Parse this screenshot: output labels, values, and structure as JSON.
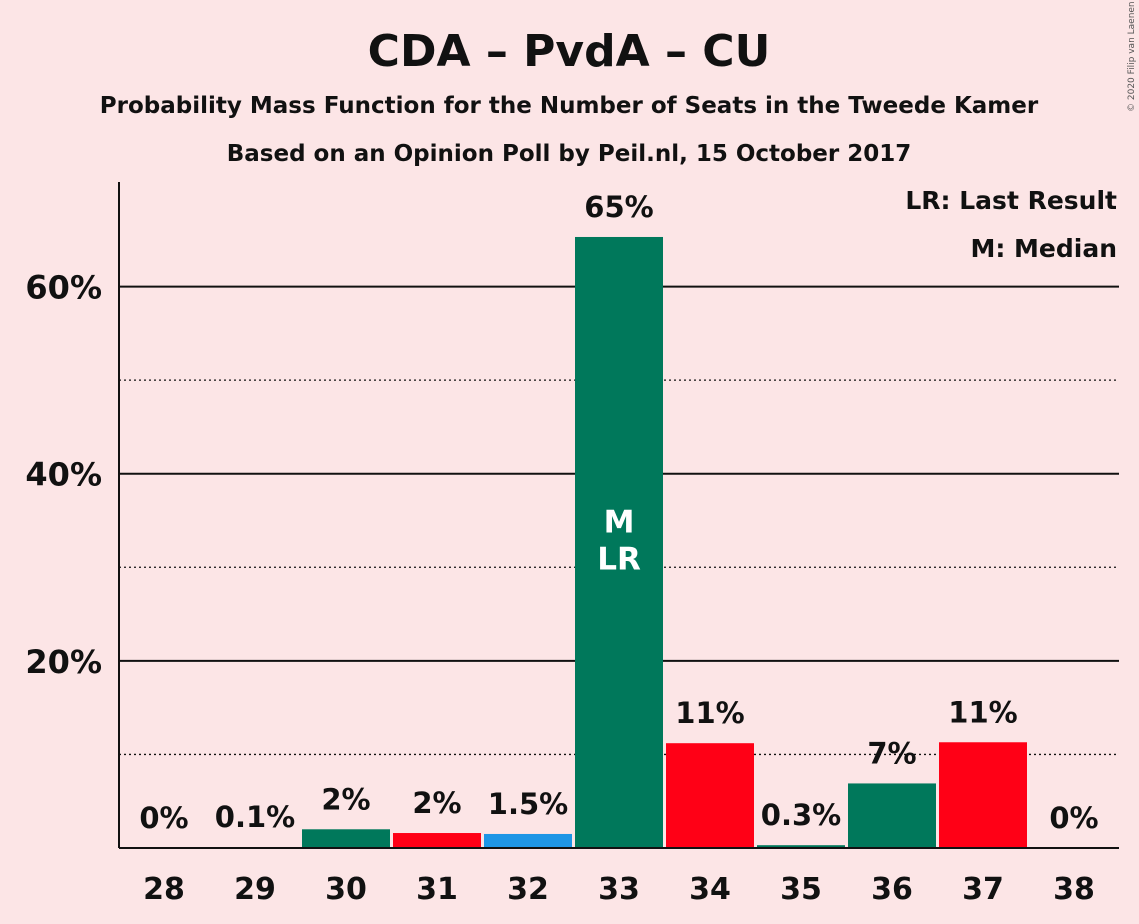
{
  "chart_data": {
    "type": "bar",
    "title": "CDA – PvdA – CU",
    "subtitle": "Probability Mass Function for the Number of Seats in the Tweede Kamer",
    "subtitle2": "Based on an Opinion Poll by Peil.nl, 15 October 2017",
    "categories": [
      "28",
      "29",
      "30",
      "31",
      "32",
      "33",
      "34",
      "35",
      "36",
      "37",
      "38"
    ],
    "values": [
      0,
      0.1,
      2,
      1.6,
      1.5,
      65.3,
      11.2,
      0.3,
      6.9,
      11.3,
      0
    ],
    "value_labels": [
      "0%",
      "0.1%",
      "2%",
      "2%",
      "1.5%",
      "65%",
      "11%",
      "0.3%",
      "7%",
      "11%",
      "0%"
    ],
    "bar_colors": [
      "#00785b",
      "#00785b",
      "#00785b",
      "#ff0016",
      "#1e96e6",
      "#00785b",
      "#ff0016",
      "#00785b",
      "#00785b",
      "#ff0016",
      "#00785b"
    ],
    "ylim": [
      0,
      70
    ],
    "yticks": [
      20,
      40,
      60
    ],
    "ytick_labels": [
      "20%",
      "40%",
      "60%"
    ],
    "minor_gridlines": [
      10,
      30,
      50
    ],
    "grid": true,
    "xlabel": "",
    "ylabel": "",
    "median_seat": "33",
    "last_result_seat": "33",
    "median_marker": "M",
    "last_result_marker": "LR",
    "legend": [
      "LR: Last Result",
      "M: Median"
    ],
    "legend_position": "top-right",
    "copyright": "© 2020 Filip van Laenen"
  }
}
